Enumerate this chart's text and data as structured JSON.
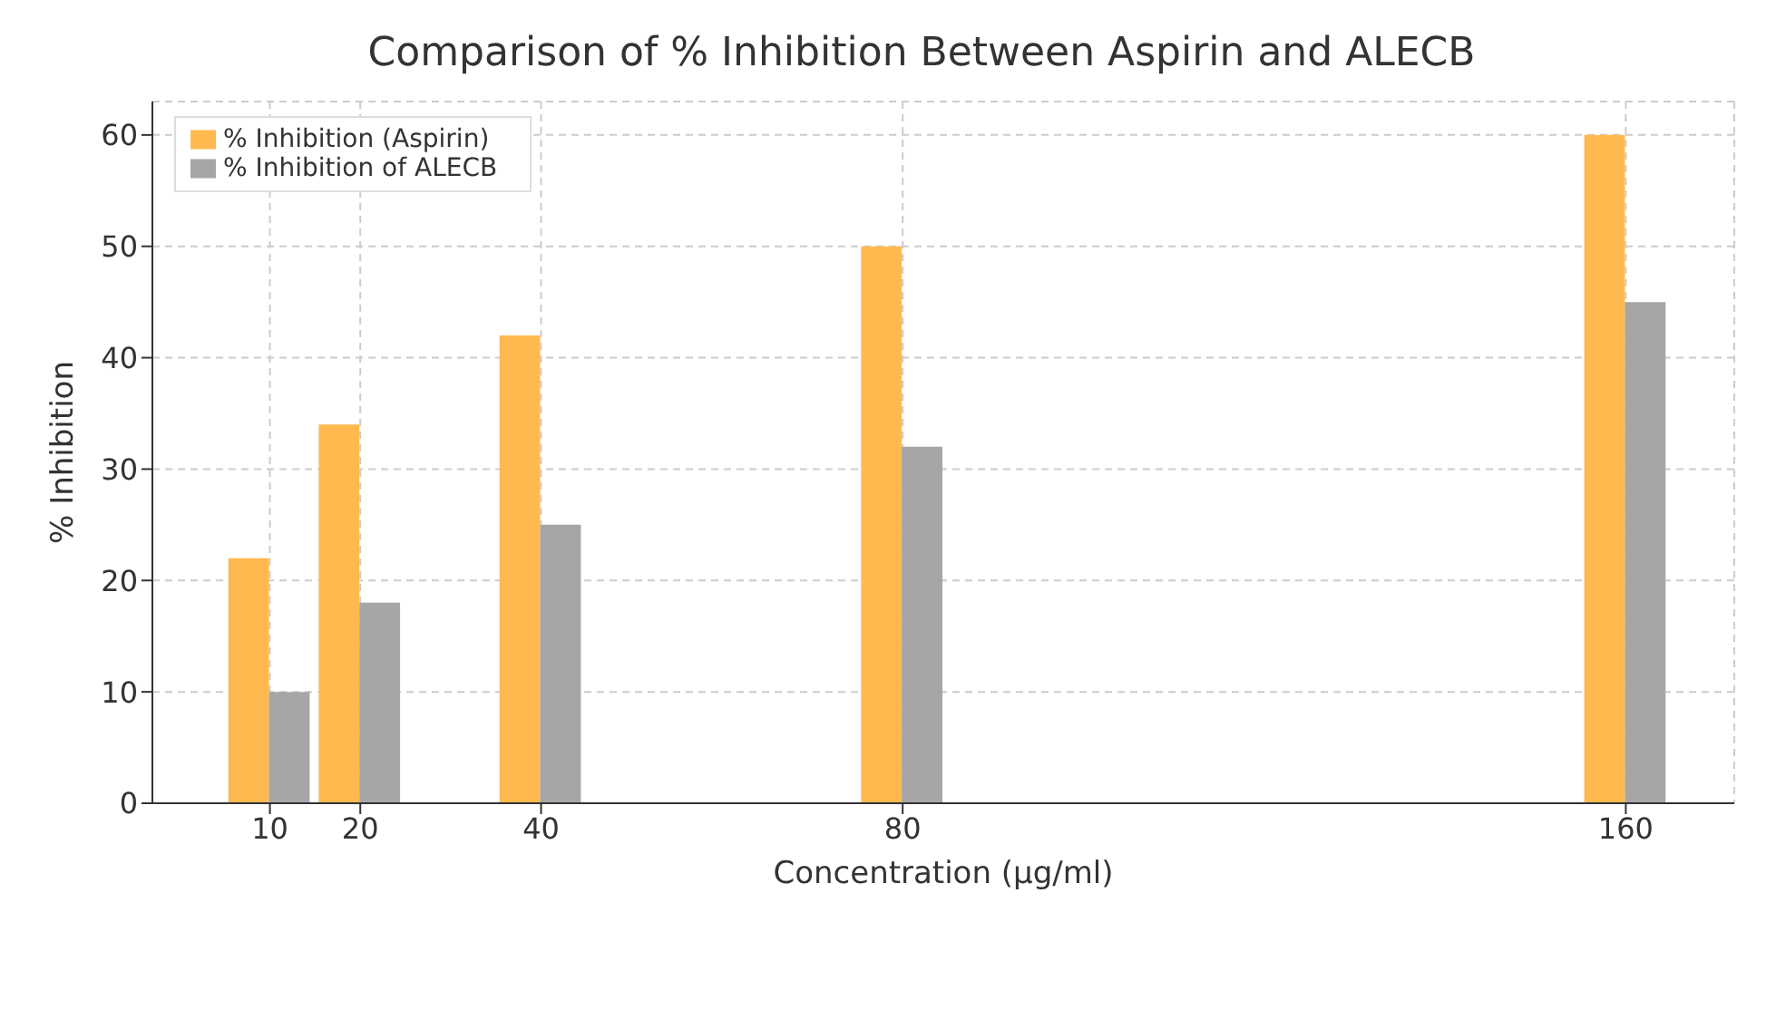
{
  "chart_data": {
    "type": "bar",
    "title": "Comparison of % Inhibition Between Aspirin and ALECB",
    "xlabel": "Concentration (µg/ml)",
    "ylabel": "% Inhibition",
    "x": [
      10,
      20,
      40,
      80,
      160
    ],
    "series": [
      {
        "name": "% Inhibition (Aspirin)",
        "color": "#ffb94f",
        "values": [
          22,
          34,
          42,
          50,
          60
        ]
      },
      {
        "name": "% Inhibition of ALECB",
        "color": "#a6a6a6",
        "values": [
          10,
          18,
          25,
          32,
          45
        ]
      }
    ],
    "xlim": [
      -3,
      172
    ],
    "xticks": [
      10,
      20,
      40,
      80,
      160
    ],
    "ylim": [
      0,
      63
    ],
    "yticks": [
      0,
      10,
      20,
      30,
      40,
      50,
      60
    ],
    "grid": true,
    "legend": "top left"
  }
}
